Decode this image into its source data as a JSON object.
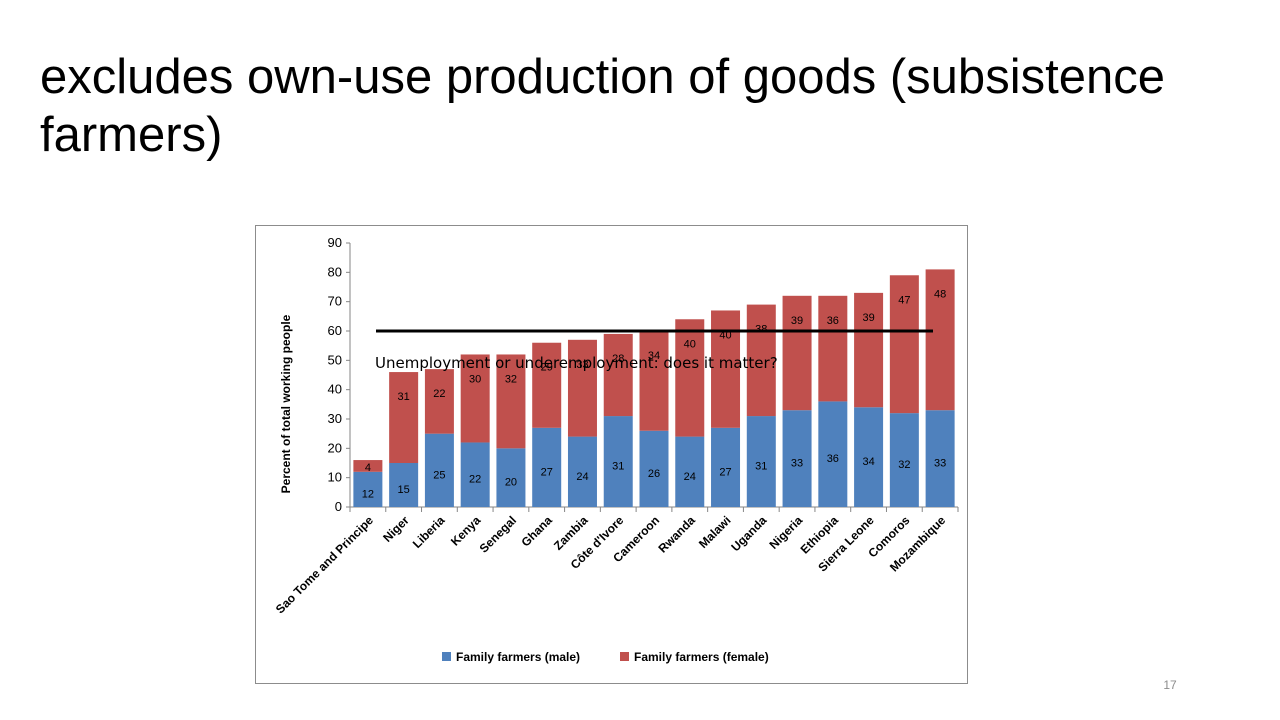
{
  "slide": {
    "title": "excludes own-use production of goods (subsistence farmers)",
    "page_number": "17"
  },
  "chart_data": {
    "type": "bar",
    "stacked": true,
    "title": "",
    "xlabel": "",
    "ylabel": "Percent of total working people",
    "ylim": [
      0,
      90
    ],
    "yticks": [
      0,
      10,
      20,
      30,
      40,
      50,
      60,
      70,
      80,
      90
    ],
    "grid": false,
    "legend_position": "bottom",
    "categories": [
      "Sao Tome and Principe",
      "Niger",
      "Liberia",
      "Kenya",
      "Senegal",
      "Ghana",
      "Zambia",
      "Côte d'Ivore",
      "Cameroon",
      "Rwanda",
      "Malawi",
      "Uganda",
      "Nigeria",
      "Ethiopia",
      "Sierra Leone",
      "Comoros",
      "Mozambique"
    ],
    "series": [
      {
        "name": "Family farmers (male)",
        "color": "#4f81bd",
        "values": [
          12,
          15,
          25,
          22,
          20,
          27,
          24,
          31,
          26,
          24,
          27,
          31,
          33,
          36,
          34,
          32,
          33
        ]
      },
      {
        "name": "Family farmers (female)",
        "color": "#c0504d",
        "values": [
          4,
          31,
          22,
          30,
          32,
          29,
          33,
          28,
          34,
          40,
          40,
          38,
          39,
          36,
          39,
          47,
          48
        ]
      }
    ],
    "reference_line": {
      "y": 60,
      "color": "#000000"
    },
    "annotation": "Unemployment or underemployment: does it matter?"
  }
}
